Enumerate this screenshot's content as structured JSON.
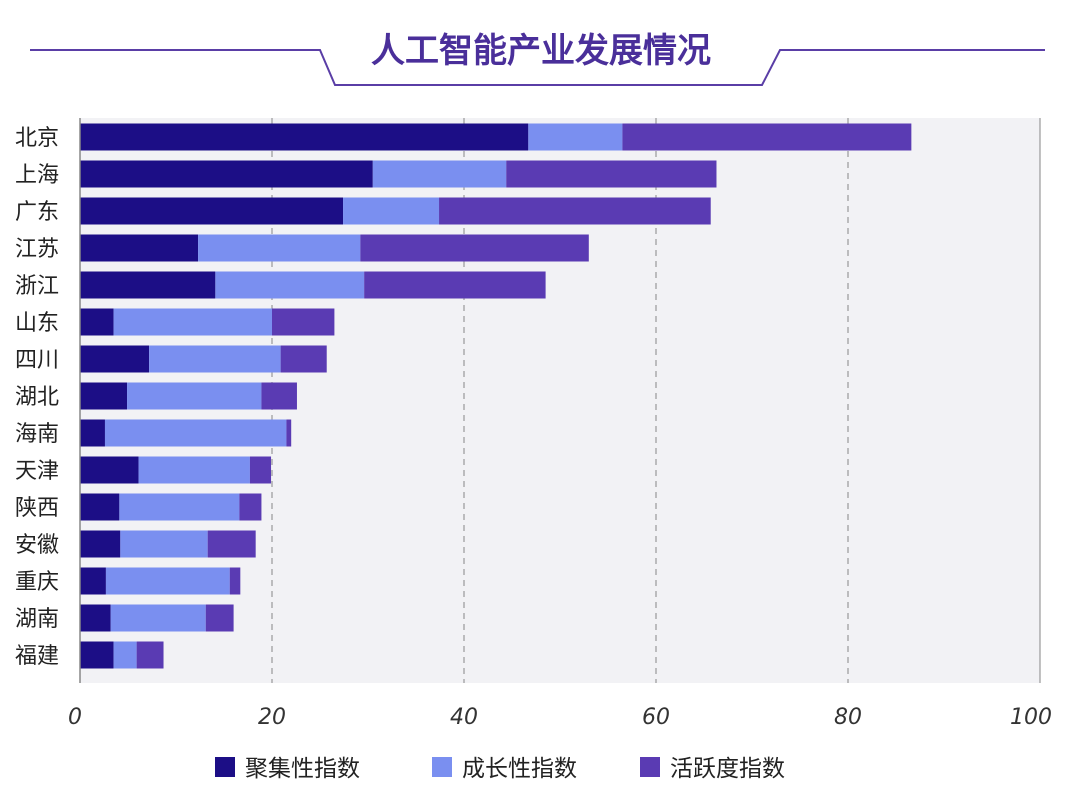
{
  "colors": {
    "plot_background": "#f2f2f5",
    "grid": "#999999",
    "title": "#4a2f9a",
    "title_frame": "#5a3ea6",
    "series": [
      "#1c0e86",
      "#7a8ff0",
      "#5a3bb3"
    ]
  },
  "chart_data": {
    "type": "bar",
    "orientation": "horizontal",
    "stacked": true,
    "title": "人工智能产业发展情况",
    "xlabel": "",
    "ylabel": "",
    "xlim": [
      0,
      100
    ],
    "xticks": [
      0,
      20,
      40,
      60,
      80,
      100
    ],
    "grid": "vertical-dashed",
    "legend_position": "bottom",
    "categories": [
      "北京",
      "上海",
      "广东",
      "江苏",
      "浙江",
      "山东",
      "四川",
      "湖北",
      "海南",
      "天津",
      "陕西",
      "安徽",
      "重庆",
      "湖南",
      "福建"
    ],
    "series": [
      {
        "name": "聚集性指数",
        "values": [
          46.7,
          30.5,
          27.4,
          12.3,
          14.1,
          3.5,
          7.2,
          4.9,
          2.6,
          6.1,
          4.1,
          4.2,
          2.7,
          3.2,
          3.5
        ]
      },
      {
        "name": "成长性指数",
        "values": [
          9.8,
          13.9,
          10.0,
          16.9,
          15.5,
          16.5,
          13.7,
          14.0,
          18.9,
          11.6,
          12.5,
          9.1,
          12.9,
          9.9,
          2.4
        ]
      },
      {
        "name": "活跃度指数",
        "values": [
          30.1,
          21.9,
          28.3,
          23.8,
          18.9,
          6.5,
          4.8,
          3.7,
          0.5,
          2.2,
          2.3,
          5.0,
          1.1,
          2.9,
          2.8
        ]
      }
    ]
  }
}
